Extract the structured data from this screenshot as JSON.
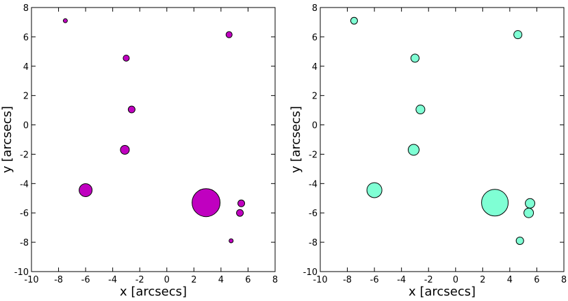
{
  "chart_data": [
    {
      "type": "scatter",
      "xlabel": "x [arcsecs]",
      "ylabel": "y [arcsecs]",
      "xlim": [
        -10,
        8
      ],
      "ylim": [
        -10,
        8
      ],
      "xticks": [
        "-10",
        "-8",
        "-6",
        "-4",
        "-2",
        "0",
        "2",
        "4",
        "6",
        "8"
      ],
      "yticks": [
        "-10",
        "-8",
        "-6",
        "-4",
        "-2",
        "0",
        "2",
        "4",
        "6",
        "8"
      ],
      "grid": false,
      "marker_color": "#c000c0",
      "points": [
        {
          "x": -7.5,
          "y": 7.1,
          "size": 0.6
        },
        {
          "x": 4.6,
          "y": 6.15,
          "size": 0.9
        },
        {
          "x": -3.0,
          "y": 4.55,
          "size": 0.9
        },
        {
          "x": -2.6,
          "y": 1.05,
          "size": 1.0
        },
        {
          "x": -3.1,
          "y": -1.7,
          "size": 1.3
        },
        {
          "x": -6.0,
          "y": -4.45,
          "size": 1.9
        },
        {
          "x": 2.9,
          "y": -5.3,
          "size": 4.1
        },
        {
          "x": 5.5,
          "y": -5.35,
          "size": 1.0
        },
        {
          "x": 5.4,
          "y": -6.0,
          "size": 1.0
        },
        {
          "x": 4.75,
          "y": -7.9,
          "size": 0.6
        }
      ]
    },
    {
      "type": "scatter",
      "xlabel": "x [arcsecs]",
      "ylabel": "y [arcsecs]",
      "xlim": [
        -10,
        8
      ],
      "ylim": [
        -10,
        8
      ],
      "xticks": [
        "-10",
        "-8",
        "-6",
        "-4",
        "-2",
        "0",
        "2",
        "4",
        "6",
        "8"
      ],
      "yticks": [
        "-10",
        "-8",
        "-6",
        "-4",
        "-2",
        "0",
        "2",
        "4",
        "6",
        "8"
      ],
      "grid": false,
      "marker_color": "#7fffd4",
      "points": [
        {
          "x": -7.5,
          "y": 7.1,
          "size": 1.0
        },
        {
          "x": 4.6,
          "y": 6.15,
          "size": 1.2
        },
        {
          "x": -3.0,
          "y": 4.55,
          "size": 1.2
        },
        {
          "x": -2.6,
          "y": 1.05,
          "size": 1.3
        },
        {
          "x": -3.1,
          "y": -1.7,
          "size": 1.6
        },
        {
          "x": -6.0,
          "y": -4.45,
          "size": 2.2
        },
        {
          "x": 2.9,
          "y": -5.3,
          "size": 3.9
        },
        {
          "x": 5.5,
          "y": -5.35,
          "size": 1.4
        },
        {
          "x": 5.4,
          "y": -6.0,
          "size": 1.4
        },
        {
          "x": 4.75,
          "y": -7.9,
          "size": 1.1
        }
      ]
    }
  ]
}
